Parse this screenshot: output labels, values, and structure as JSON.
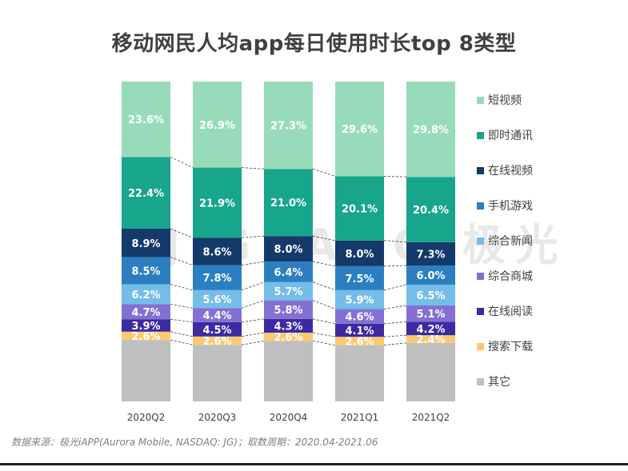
{
  "chart_data": {
    "type": "bar",
    "stacked": true,
    "normalized": true,
    "title": "移动网民人均app每日使用时长top  8类型",
    "categories": [
      "2020Q2",
      "2020Q3",
      "2020Q4",
      "2021Q1",
      "2021Q2"
    ],
    "series": [
      {
        "name": "其它",
        "color": "#bfbfbf",
        "values": [
          null,
          null,
          null,
          null,
          null
        ],
        "label_color": "#ffffff"
      },
      {
        "name": "搜索下载",
        "color": "#fdc96e",
        "values": [
          2.6,
          2.6,
          2.6,
          2.6,
          2.4
        ],
        "label_color": "#ffffff"
      },
      {
        "name": "在线阅读",
        "color": "#3c2aa3",
        "values": [
          3.9,
          4.5,
          4.3,
          4.1,
          4.2
        ],
        "label_color": "#ffffff"
      },
      {
        "name": "综合商城",
        "color": "#8470d3",
        "values": [
          4.7,
          4.4,
          5.8,
          4.6,
          5.1
        ],
        "label_color": "#ffffff"
      },
      {
        "name": "综合新闻",
        "color": "#74bde8",
        "values": [
          6.2,
          5.6,
          5.7,
          5.9,
          6.5
        ],
        "label_color": "#ffffff"
      },
      {
        "name": "手机游戏",
        "color": "#2b7fc1",
        "values": [
          8.5,
          7.8,
          6.4,
          7.5,
          6.0
        ],
        "label_color": "#ffffff"
      },
      {
        "name": "在线视频",
        "color": "#143a6b",
        "values": [
          8.9,
          8.6,
          8.0,
          8.0,
          7.3
        ],
        "label_color": "#ffffff"
      },
      {
        "name": "即时通讯",
        "color": "#17a58c",
        "values": [
          22.4,
          21.9,
          21.0,
          20.1,
          20.4
        ],
        "label_color": "#ffffff"
      },
      {
        "name": "短视频",
        "color": "#98dbb9",
        "values": [
          23.6,
          26.9,
          27.3,
          29.6,
          29.8
        ],
        "label_color": "#ffffff"
      }
    ],
    "legend_order": [
      "短视频",
      "即时通讯",
      "在线视频",
      "手机游戏",
      "综合新闻",
      "综合商城",
      "在线阅读",
      "搜索下载",
      "其它"
    ],
    "legend_position": "right",
    "value_suffix": "%",
    "connector_lines": "dashed"
  },
  "watermark_text": "JIGUANG 极光",
  "source_note": "数据来源：极光iAPP(Aurora Mobile, NASDAQ: JG)；取数周期：2020.04-2021.06"
}
